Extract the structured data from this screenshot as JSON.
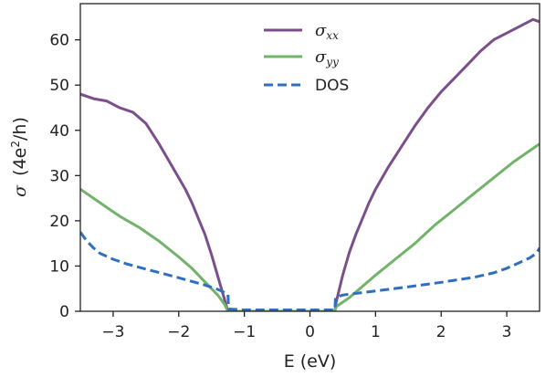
{
  "chart_data": {
    "type": "line",
    "xlabel": "E (eV)",
    "ylabel_symbol": "σ",
    "ylabel_rest": "(4e",
    "ylabel_sup": "2",
    "ylabel_tail": "/h)",
    "xlim": [
      -3.5,
      3.5
    ],
    "ylim": [
      0,
      68
    ],
    "xticks": [
      -3,
      -2,
      -1,
      0,
      1,
      2,
      3
    ],
    "xtick_labels": [
      "−3",
      "−2",
      "−1",
      "0",
      "1",
      "2",
      "3"
    ],
    "yticks": [
      0,
      10,
      20,
      30,
      40,
      50,
      60
    ],
    "ytick_labels": [
      "0",
      "10",
      "20",
      "30",
      "40",
      "50",
      "60"
    ],
    "grid": false,
    "legend_position": "top-center",
    "series": [
      {
        "name": "σxx",
        "legend_main": "σ",
        "legend_sub": "xx",
        "color": "#7b4f8c",
        "style": "solid",
        "x": [
          -3.5,
          -3.3,
          -3.1,
          -2.9,
          -2.7,
          -2.5,
          -2.3,
          -2.1,
          -1.9,
          -1.8,
          -1.7,
          -1.6,
          -1.5,
          -1.45,
          -1.4,
          -1.35,
          -1.3,
          -1.27,
          -1.25,
          -1.0,
          0.0,
          0.38,
          0.4,
          0.45,
          0.5,
          0.55,
          0.6,
          0.7,
          0.8,
          0.9,
          1.0,
          1.2,
          1.4,
          1.6,
          1.8,
          2.0,
          2.2,
          2.4,
          2.6,
          2.8,
          3.0,
          3.2,
          3.4,
          3.5
        ],
        "y": [
          48,
          47,
          46.5,
          45,
          44,
          41.5,
          37,
          32,
          27,
          24,
          20.5,
          17,
          12.5,
          10,
          7.5,
          5,
          2.5,
          1,
          0,
          0,
          0,
          0,
          2,
          5,
          8,
          10.5,
          13,
          17,
          20.5,
          24,
          27,
          32,
          36.5,
          41,
          45,
          48.5,
          51.5,
          54.5,
          57.5,
          60,
          61.5,
          63,
          64.5,
          64
        ]
      },
      {
        "name": "σyy",
        "legend_main": "σ",
        "legend_sub": "yy",
        "color": "#72b36a",
        "style": "solid",
        "x": [
          -3.5,
          -3.2,
          -2.9,
          -2.6,
          -2.3,
          -2.0,
          -1.8,
          -1.6,
          -1.4,
          -1.3,
          -1.25,
          -1.0,
          0.0,
          0.38,
          0.4,
          0.6,
          0.8,
          1.0,
          1.3,
          1.6,
          1.9,
          2.2,
          2.5,
          2.8,
          3.1,
          3.4,
          3.5
        ],
        "y": [
          27,
          24,
          21,
          18.5,
          15.5,
          12,
          9.5,
          6.5,
          3.5,
          1.5,
          0,
          0,
          0,
          0,
          1,
          3,
          5.5,
          8,
          11.5,
          15,
          19,
          22.5,
          26,
          29.5,
          33,
          36,
          37
        ]
      },
      {
        "name": "DOS",
        "color": "#2f6fbd",
        "style": "dashed",
        "x": [
          -3.5,
          -3.4,
          -3.3,
          -3.2,
          -3.0,
          -2.8,
          -2.5,
          -2.2,
          -1.9,
          -1.6,
          -1.4,
          -1.25,
          -1.24,
          -1.0,
          0.0,
          0.38,
          0.39,
          0.5,
          1.0,
          1.5,
          2.0,
          2.5,
          2.8,
          3.0,
          3.2,
          3.35,
          3.45,
          3.5
        ],
        "y": [
          17.5,
          15.5,
          14,
          12.8,
          11.5,
          10.5,
          9.3,
          8.2,
          7,
          5.8,
          4.8,
          3.8,
          0.5,
          0.3,
          0.3,
          0.3,
          3,
          3.6,
          4.5,
          5.4,
          6.4,
          7.5,
          8.5,
          9.5,
          10.8,
          11.8,
          12.8,
          14
        ]
      }
    ]
  }
}
